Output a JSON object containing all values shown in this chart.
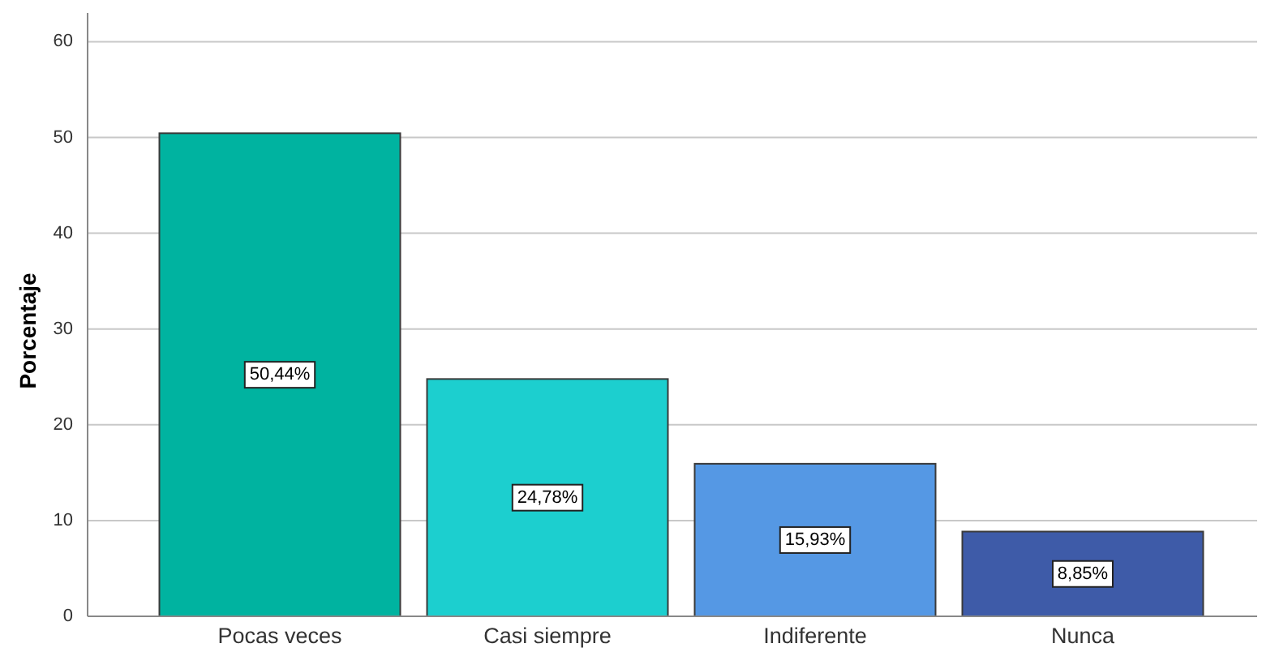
{
  "chart_data": {
    "type": "bar",
    "ylabel": "Porcentaje",
    "categories": [
      "Pocas veces",
      "Casi siempre",
      "Indiferente",
      "Nunca"
    ],
    "values": [
      50.44,
      24.78,
      15.93,
      8.85
    ],
    "colors": [
      "#00b3a0",
      "#1ccfcf",
      "#5598e4",
      "#3e5ba8"
    ],
    "value_labels": [
      "50,44%",
      "24,78%",
      "15,93%",
      "8,85%"
    ],
    "ylim": [
      0,
      63
    ],
    "yticks": [
      0,
      10,
      20,
      30,
      40,
      50,
      60
    ],
    "grid": "y"
  }
}
